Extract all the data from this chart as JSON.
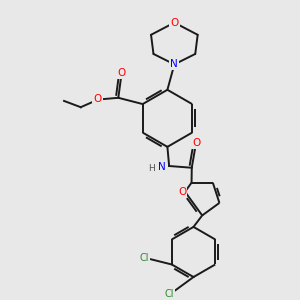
{
  "bg_color": "#e8e8e8",
  "atom_colors": {
    "O": "#ff0000",
    "N": "#0000ff",
    "C": "#000000",
    "H": "#505050",
    "Cl": "#2e8b2e"
  },
  "bond_color": "#1a1a1a",
  "bond_width": 1.4
}
